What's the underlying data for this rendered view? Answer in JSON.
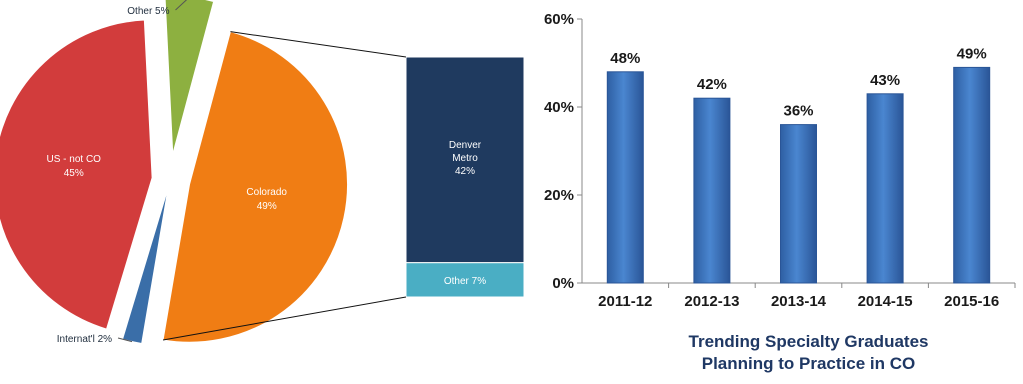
{
  "chart_data": [
    {
      "type": "pie",
      "slices": [
        {
          "label": "Colorado",
          "value": 49,
          "value_label": "49%",
          "color": "#f07d14"
        },
        {
          "label": "Internat'l",
          "value": 2,
          "value_label": "2%",
          "color": "#3a6ea8"
        },
        {
          "label": "US - not CO",
          "value": 45,
          "value_label": "45%",
          "color": "#d23c3c"
        },
        {
          "label": "Other",
          "value": 5,
          "value_label": "5%",
          "color": "#8db040"
        }
      ],
      "breakdown": {
        "of": "Colorado",
        "type": "stacked-bar",
        "segments": [
          {
            "label_lines": [
              "Denver",
              "Metro"
            ],
            "value": 42,
            "value_label": "42%",
            "color": "#1f3a5f"
          },
          {
            "label": "Other",
            "value": 7,
            "value_label": "7%",
            "color": "#4aaec4"
          }
        ]
      }
    },
    {
      "type": "bar",
      "categories": [
        "2011-12",
        "2012-13",
        "2013-14",
        "2014-15",
        "2015-16"
      ],
      "values": [
        48,
        42,
        36,
        43,
        49
      ],
      "value_labels": [
        "48%",
        "42%",
        "36%",
        "43%",
        "49%"
      ],
      "ylim": [
        0,
        60
      ],
      "yticks": [
        0,
        20,
        40,
        60
      ],
      "ytick_labels": [
        "0%",
        "20%",
        "40%",
        "60%"
      ],
      "title_lines": [
        "Trending Specialty Graduates",
        "Planning to Practice in CO"
      ],
      "bar_color": "#4a86d0",
      "grid": false
    }
  ]
}
